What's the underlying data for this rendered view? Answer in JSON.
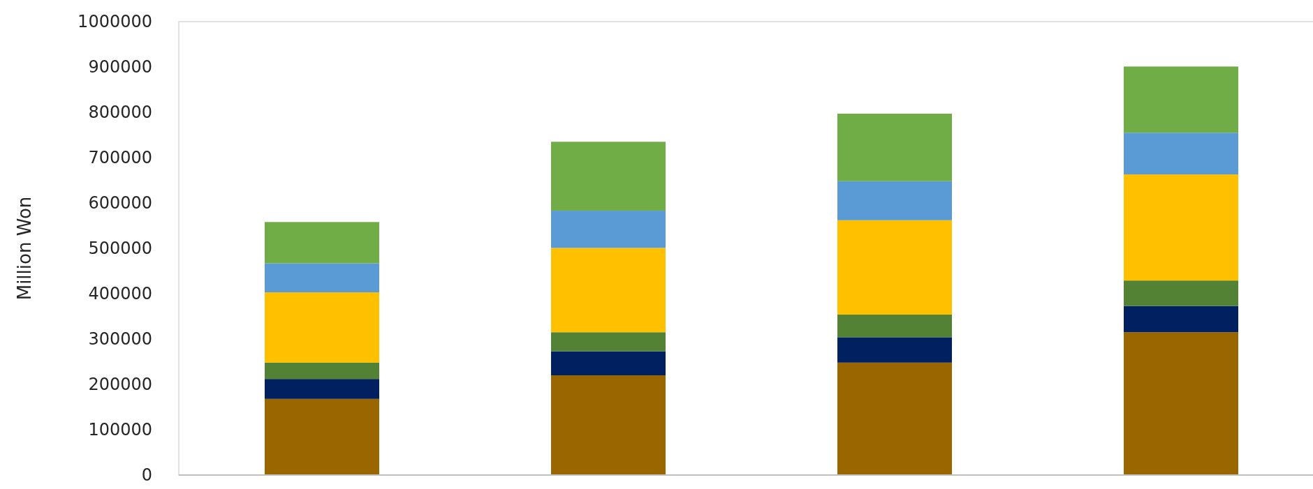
{
  "chart_data": {
    "type": "bar",
    "stacked": true,
    "ylabel": "Million Won",
    "categories": [
      null,
      null,
      null,
      null
    ],
    "series": [
      {
        "color": "#996600",
        "values": [
          168000,
          220000,
          248000,
          315000
        ]
      },
      {
        "color": "#002060",
        "values": [
          44000,
          53000,
          56000,
          58000
        ]
      },
      {
        "color": "#548235",
        "values": [
          36000,
          42000,
          50000,
          56000
        ]
      },
      {
        "color": "#ffc000",
        "values": [
          155000,
          186000,
          208000,
          234000
        ]
      },
      {
        "color": "#5b9bd5",
        "values": [
          64000,
          82000,
          86000,
          92000
        ]
      },
      {
        "color": "#70ad47",
        "values": [
          91000,
          152000,
          149000,
          146000
        ]
      }
    ],
    "ylim": [
      0,
      1000000
    ],
    "yticks": [
      0,
      100000,
      200000,
      300000,
      400000,
      500000,
      600000,
      700000,
      800000,
      900000,
      1000000
    ],
    "grid": false
  }
}
